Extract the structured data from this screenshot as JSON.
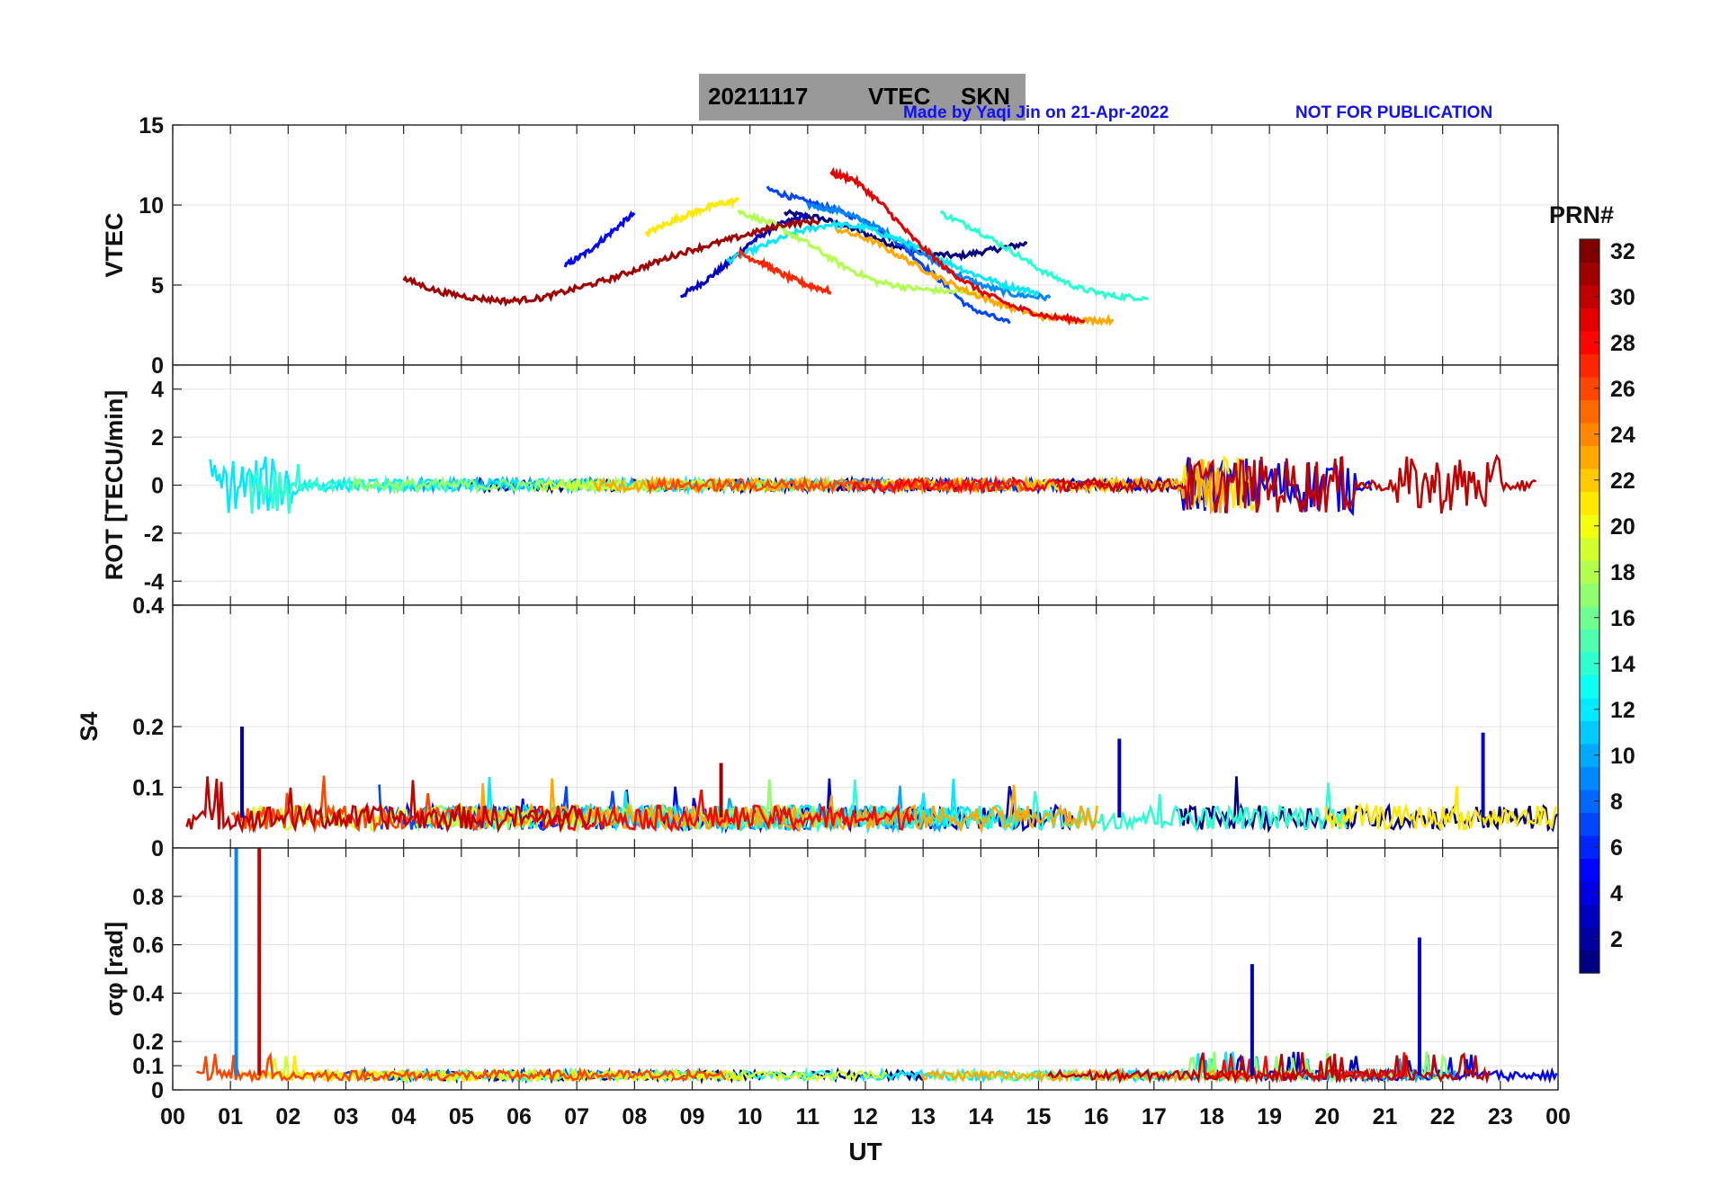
{
  "header": {
    "date": "20211117",
    "product": "VTEC",
    "station": "SKN",
    "credit": "Made by Yaqi Jin on 21-Apr-2022",
    "notice": "NOT FOR PUBLICATION"
  },
  "chart_data": [
    {
      "type": "line",
      "panel": "vtec",
      "ylabel": "VTEC",
      "ylim": [
        0,
        15
      ],
      "yticks": [
        0,
        5,
        10,
        15
      ],
      "xlim": [
        0,
        24
      ],
      "series_note": "Multiple PRN traces colored by PRN number",
      "series": [
        {
          "prn": 1,
          "x": [
            10.6,
            11.2,
            11.8,
            12.4,
            13.0,
            13.6,
            14.2,
            14.8
          ],
          "y": [
            9.5,
            9.2,
            8.5,
            7.6,
            7.0,
            6.8,
            7.2,
            7.6
          ]
        },
        {
          "prn": 3,
          "x": [
            8.8,
            9.2,
            9.6,
            10.0,
            10.4,
            11.0
          ],
          "y": [
            4.3,
            5.2,
            6.3,
            7.6,
            8.6,
            9.4
          ]
        },
        {
          "prn": 5,
          "x": [
            6.8,
            7.2,
            7.6,
            8.0
          ],
          "y": [
            6.2,
            7.1,
            8.3,
            9.5
          ]
        },
        {
          "prn": 7,
          "x": [
            10.3,
            10.8,
            11.4,
            12.0,
            12.6,
            13.2,
            13.8,
            14.5
          ],
          "y": [
            11.0,
            10.4,
            9.8,
            9.0,
            7.6,
            5.6,
            3.6,
            2.6
          ]
        },
        {
          "prn": 9,
          "x": [
            11.0,
            11.6,
            12.2,
            12.8,
            13.4,
            14.0,
            14.6,
            15.2
          ],
          "y": [
            10.0,
            9.6,
            8.6,
            7.4,
            6.0,
            5.0,
            4.4,
            4.2
          ]
        },
        {
          "prn": 12,
          "x": [
            9.6,
            10.2,
            10.8,
            11.4,
            12.0,
            12.6,
            13.2,
            13.8,
            14.4,
            15.0
          ],
          "y": [
            6.5,
            7.4,
            8.3,
            8.8,
            8.6,
            7.8,
            6.8,
            5.8,
            5.0,
            4.5
          ]
        },
        {
          "prn": 14,
          "x": [
            13.3,
            13.9,
            14.5,
            15.1,
            15.7,
            16.3,
            16.9
          ],
          "y": [
            9.5,
            8.5,
            7.2,
            5.8,
            4.8,
            4.3,
            4.2
          ]
        },
        {
          "prn": 18,
          "x": [
            9.8,
            10.4,
            11.0,
            11.6,
            12.2,
            12.8,
            13.4,
            14.0
          ],
          "y": [
            9.6,
            8.8,
            7.6,
            6.2,
            5.2,
            4.8,
            4.6,
            4.5
          ]
        },
        {
          "prn": 21,
          "x": [
            8.2,
            8.6,
            9.0,
            9.4,
            9.8
          ],
          "y": [
            8.2,
            8.9,
            9.5,
            10.0,
            10.3
          ]
        },
        {
          "prn": 23,
          "x": [
            11.5,
            12.1,
            12.7,
            13.3,
            13.9,
            14.5,
            15.1,
            15.7,
            16.3
          ],
          "y": [
            8.5,
            7.8,
            6.6,
            5.4,
            4.4,
            3.6,
            3.0,
            2.8,
            2.8
          ]
        },
        {
          "prn": 27,
          "x": [
            9.8,
            10.2,
            10.6,
            11.0,
            11.4
          ],
          "y": [
            7.0,
            6.4,
            5.6,
            5.0,
            4.6
          ]
        },
        {
          "prn": 29,
          "x": [
            11.4,
            11.8,
            12.3,
            12.8,
            13.4,
            14.0,
            14.6,
            15.2,
            15.8
          ],
          "y": [
            12.0,
            11.6,
            10.0,
            8.0,
            6.0,
            4.6,
            3.6,
            3.0,
            2.8
          ]
        },
        {
          "prn": 31,
          "x": [
            4.0,
            4.6,
            5.2,
            5.8,
            6.4,
            7.0,
            7.6,
            8.2,
            8.8,
            9.4,
            10.0,
            10.6,
            11.2
          ],
          "y": [
            5.4,
            4.6,
            4.2,
            4.0,
            4.2,
            4.8,
            5.4,
            6.2,
            7.0,
            7.6,
            8.2,
            8.8,
            9.0
          ]
        }
      ]
    },
    {
      "type": "line",
      "panel": "rot",
      "ylabel": "ROT [TECU/min]",
      "ylim": [
        -5,
        5
      ],
      "yticks": [
        -4,
        -2,
        0,
        2,
        4
      ],
      "xlim": [
        0,
        24
      ]
    },
    {
      "type": "line",
      "panel": "s4",
      "ylabel": "S4",
      "ylim": [
        0,
        0.4
      ],
      "yticks": [
        0,
        0.1,
        0.2,
        0.4
      ],
      "xlim": [
        0,
        24
      ],
      "spikes": [
        {
          "x": 1.2,
          "y": 0.2,
          "prn": 3
        },
        {
          "x": 16.4,
          "y": 0.18,
          "prn": 3
        },
        {
          "x": 22.7,
          "y": 0.19,
          "prn": 4
        },
        {
          "x": 9.5,
          "y": 0.14,
          "prn": 31
        }
      ]
    },
    {
      "type": "line",
      "panel": "sigphi",
      "ylabel": "σφ [rad]",
      "ylim": [
        0,
        1
      ],
      "yticks": [
        0,
        0.1,
        0.2,
        0.4,
        0.6,
        0.8
      ],
      "xlim": [
        0,
        24
      ],
      "spikes": [
        {
          "x": 1.1,
          "y": 1.0,
          "prn": 9
        },
        {
          "x": 1.5,
          "y": 1.0,
          "prn": 30
        },
        {
          "x": 18.7,
          "y": 0.52,
          "prn": 3
        },
        {
          "x": 21.6,
          "y": 0.63,
          "prn": 4
        }
      ]
    }
  ],
  "xaxis": {
    "label": "UT",
    "ticks": [
      "00",
      "01",
      "02",
      "03",
      "04",
      "05",
      "06",
      "07",
      "08",
      "09",
      "10",
      "11",
      "12",
      "13",
      "14",
      "15",
      "16",
      "17",
      "18",
      "19",
      "20",
      "21",
      "22",
      "23",
      "00"
    ]
  },
  "colorbar": {
    "title": "PRN#",
    "min": 1,
    "max": 32,
    "ticks": [
      2,
      4,
      6,
      8,
      10,
      12,
      14,
      16,
      18,
      20,
      22,
      24,
      26,
      28,
      30,
      32
    ],
    "colormap": "jet"
  }
}
